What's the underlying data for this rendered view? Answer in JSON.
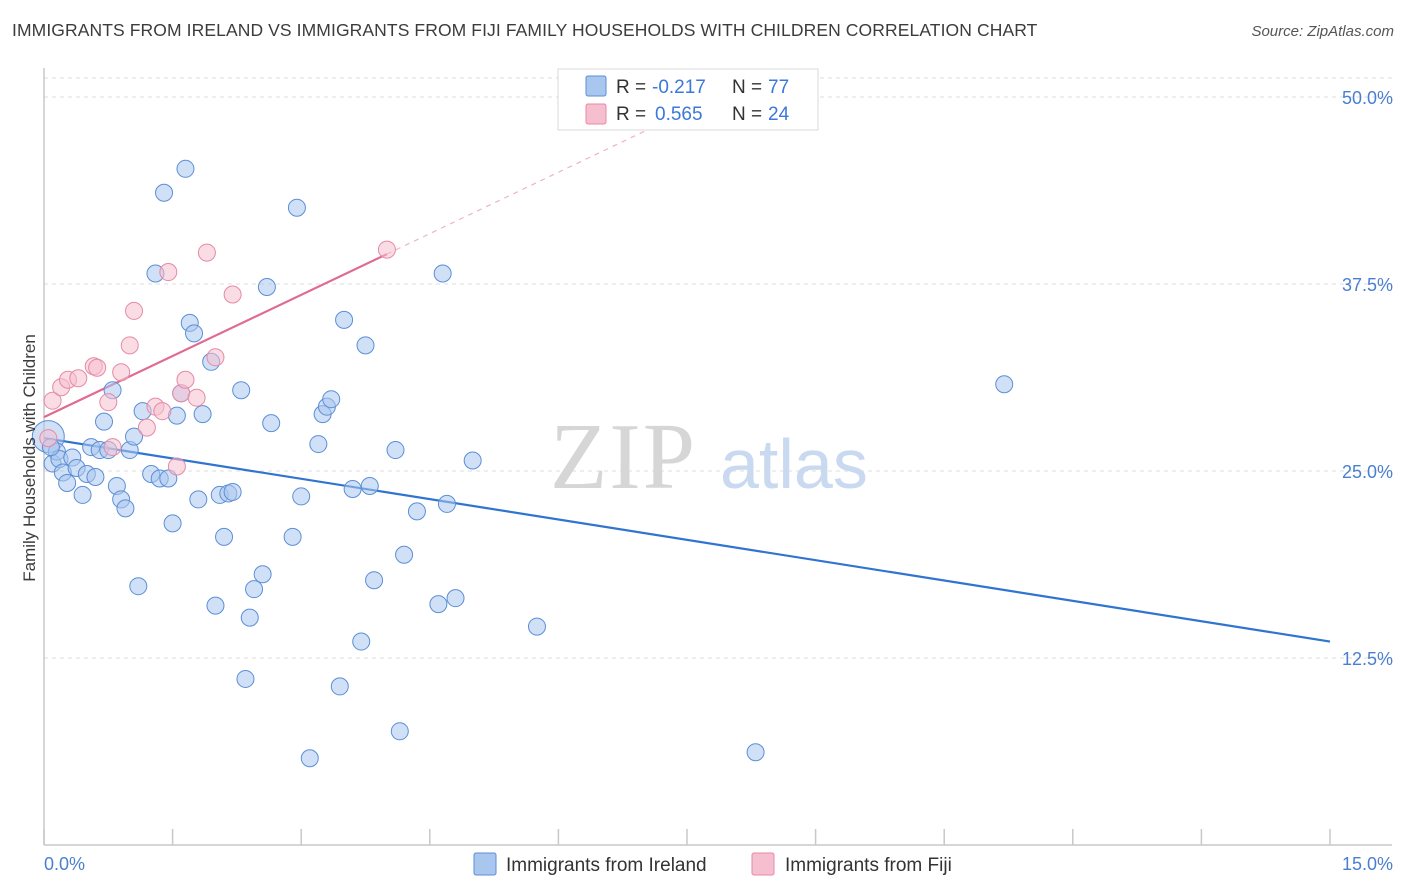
{
  "title": "IMMIGRANTS FROM IRELAND VS IMMIGRANTS FROM FIJI FAMILY HOUSEHOLDS WITH CHILDREN CORRELATION CHART",
  "source": "Source: ZipAtlas.com",
  "watermark": {
    "zip": "ZIP",
    "atlas": "atlas"
  },
  "legend": {
    "r_label": "R =",
    "n_label": "N =",
    "ireland": {
      "r": "-0.217",
      "n": "77"
    },
    "fiji": {
      "r": "0.565",
      "n": "24"
    }
  },
  "colors": {
    "ireland_fill": "#a9c7ee",
    "ireland_stroke": "#5b8fd6",
    "ireland_line": "#2f74d0",
    "fiji_fill": "#f6bfd0",
    "fiji_stroke": "#e58aa6",
    "fiji_line": "#e06a92",
    "tick_text": "#4a7fd0",
    "grid": "#dddddd"
  },
  "chart_data": {
    "type": "scatter",
    "title": "IMMIGRANTS FROM IRELAND VS IMMIGRANTS FROM FIJI FAMILY HOUSEHOLDS WITH CHILDREN CORRELATION CHART",
    "xlabel": "",
    "ylabel": "Family Households with Children",
    "xlim": [
      0,
      15
    ],
    "ylim": [
      0,
      50
    ],
    "x_tick_labels": [
      "0.0%",
      "15.0%"
    ],
    "y_ticks": [
      {
        "value": 12.5,
        "label": "12.5%"
      },
      {
        "value": 25.0,
        "label": "25.0%"
      },
      {
        "value": 37.5,
        "label": "37.5%"
      },
      {
        "value": 50.0,
        "label": "50.0%"
      }
    ],
    "legend_position": "bottom",
    "series": [
      {
        "name": "Immigrants from Ireland",
        "r": -0.217,
        "n": 77,
        "trend": {
          "x0": 0.0,
          "y0": 27.2,
          "x1": 15.0,
          "y1": 13.6
        },
        "points": [
          [
            0.05,
            27.3
          ],
          [
            0.1,
            25.5
          ],
          [
            0.15,
            26.3
          ],
          [
            0.18,
            25.8
          ],
          [
            0.22,
            24.9
          ],
          [
            0.27,
            24.2
          ],
          [
            0.33,
            25.9
          ],
          [
            0.38,
            25.2
          ],
          [
            0.45,
            23.4
          ],
          [
            0.5,
            24.8
          ],
          [
            0.55,
            26.6
          ],
          [
            0.6,
            24.6
          ],
          [
            0.65,
            26.4
          ],
          [
            0.7,
            28.3
          ],
          [
            0.75,
            26.4
          ],
          [
            0.8,
            30.4
          ],
          [
            0.85,
            24.0
          ],
          [
            0.9,
            23.1
          ],
          [
            0.95,
            22.5
          ],
          [
            1.0,
            26.4
          ],
          [
            1.05,
            27.3
          ],
          [
            1.1,
            17.3
          ],
          [
            1.15,
            29.0
          ],
          [
            1.25,
            24.8
          ],
          [
            1.3,
            38.2
          ],
          [
            1.35,
            24.5
          ],
          [
            1.4,
            43.6
          ],
          [
            1.45,
            24.5
          ],
          [
            1.5,
            21.5
          ],
          [
            1.55,
            28.7
          ],
          [
            1.6,
            30.2
          ],
          [
            1.65,
            45.2
          ],
          [
            1.7,
            34.9
          ],
          [
            1.75,
            34.2
          ],
          [
            1.8,
            23.1
          ],
          [
            1.85,
            28.8
          ],
          [
            1.95,
            32.3
          ],
          [
            2.0,
            16.0
          ],
          [
            2.05,
            23.4
          ],
          [
            2.1,
            20.6
          ],
          [
            2.15,
            23.5
          ],
          [
            2.2,
            23.6
          ],
          [
            2.3,
            30.4
          ],
          [
            2.35,
            11.1
          ],
          [
            2.4,
            15.2
          ],
          [
            2.45,
            17.1
          ],
          [
            2.55,
            18.1
          ],
          [
            2.6,
            37.3
          ],
          [
            2.65,
            28.2
          ],
          [
            2.9,
            20.6
          ],
          [
            2.95,
            42.6
          ],
          [
            3.0,
            23.3
          ],
          [
            3.1,
            5.8
          ],
          [
            3.2,
            26.8
          ],
          [
            3.25,
            28.8
          ],
          [
            3.3,
            29.3
          ],
          [
            3.35,
            29.8
          ],
          [
            3.45,
            10.6
          ],
          [
            3.5,
            35.1
          ],
          [
            3.6,
            23.8
          ],
          [
            3.7,
            13.6
          ],
          [
            3.75,
            33.4
          ],
          [
            3.8,
            24.0
          ],
          [
            3.85,
            17.7
          ],
          [
            4.1,
            26.4
          ],
          [
            4.15,
            7.6
          ],
          [
            4.2,
            19.4
          ],
          [
            4.35,
            22.3
          ],
          [
            4.6,
            16.1
          ],
          [
            4.65,
            38.2
          ],
          [
            4.7,
            22.8
          ],
          [
            4.8,
            16.5
          ],
          [
            5.0,
            25.7
          ],
          [
            5.75,
            14.6
          ],
          [
            8.3,
            6.2
          ],
          [
            11.2,
            30.8
          ],
          [
            0.08,
            26.6
          ]
        ]
      },
      {
        "name": "Immigrants from Fiji",
        "r": 0.565,
        "n": 24,
        "trend": {
          "x0": 0.0,
          "y0": 28.6,
          "x1": 4.0,
          "y1": 39.5,
          "x_dash_end": 7.0,
          "y_dash_end": 47.7
        },
        "points": [
          [
            0.05,
            27.2
          ],
          [
            0.1,
            29.7
          ],
          [
            0.2,
            30.6
          ],
          [
            0.28,
            31.1
          ],
          [
            0.4,
            31.2
          ],
          [
            0.58,
            32.0
          ],
          [
            0.62,
            31.9
          ],
          [
            0.75,
            29.6
          ],
          [
            0.8,
            26.6
          ],
          [
            0.9,
            31.6
          ],
          [
            1.0,
            33.4
          ],
          [
            1.05,
            35.7
          ],
          [
            1.2,
            27.9
          ],
          [
            1.3,
            29.3
          ],
          [
            1.38,
            29.0
          ],
          [
            1.45,
            38.3
          ],
          [
            1.55,
            25.3
          ],
          [
            1.6,
            30.2
          ],
          [
            1.65,
            31.1
          ],
          [
            1.78,
            29.9
          ],
          [
            1.9,
            39.6
          ],
          [
            2.0,
            32.6
          ],
          [
            2.2,
            36.8
          ],
          [
            4.0,
            39.8
          ]
        ]
      }
    ]
  }
}
